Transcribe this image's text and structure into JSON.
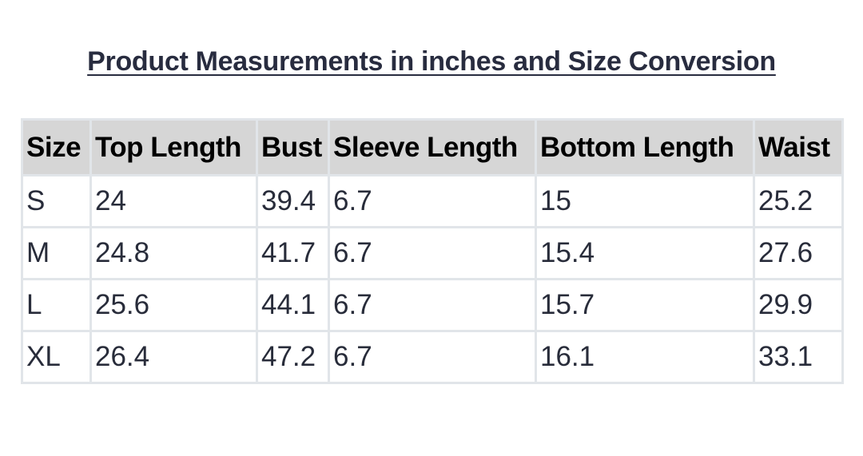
{
  "title": "Product Measurements in inches and Size Conversion",
  "table": {
    "headers": [
      "Size",
      "Top Length",
      "Bust",
      "Sleeve Length",
      "Bottom Length",
      "Waist"
    ],
    "rows": [
      [
        "S",
        "24",
        "39.4",
        "6.7",
        "15",
        "25.2"
      ],
      [
        "M",
        "24.8",
        "41.7",
        "6.7",
        "15.4",
        "27.6"
      ],
      [
        "L",
        "25.6",
        "44.1",
        "6.7",
        "15.7",
        "29.9"
      ],
      [
        "XL",
        "26.4",
        "47.2",
        "6.7",
        "16.1",
        "33.1"
      ]
    ]
  }
}
